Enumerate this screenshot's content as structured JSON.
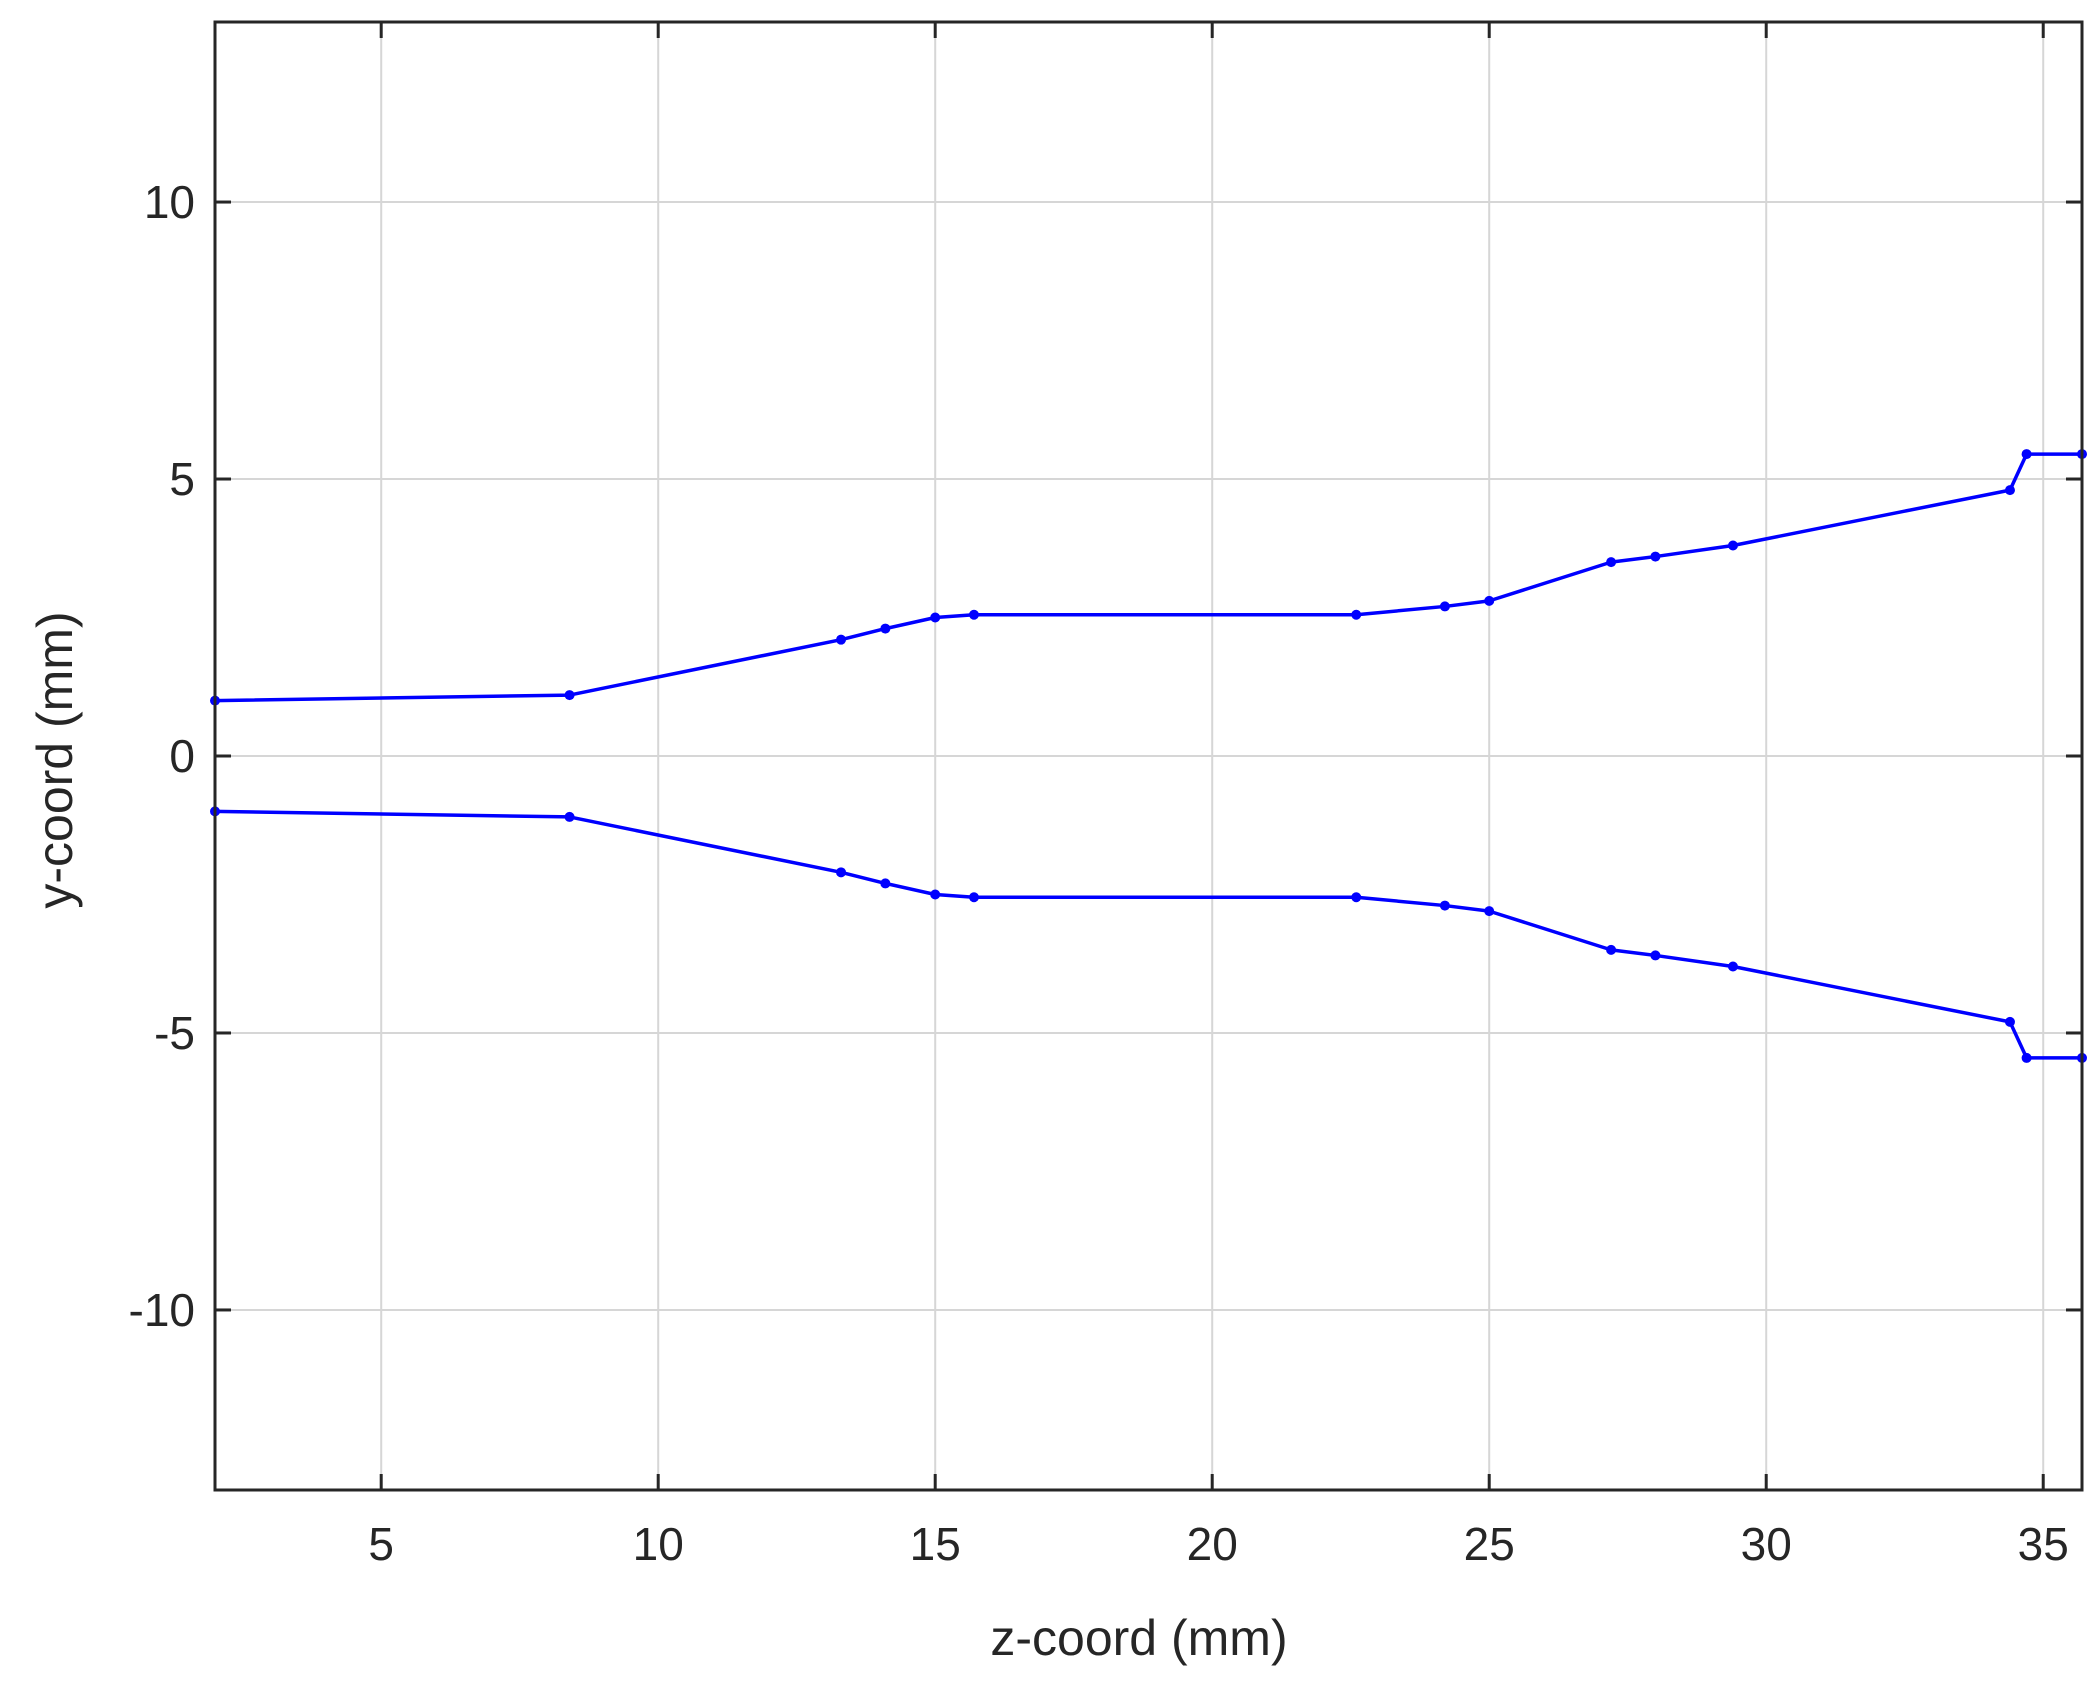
{
  "chart_data": {
    "type": "line",
    "title": "",
    "xlabel": "z-coord (mm)",
    "ylabel": "y-coord (mm)",
    "xlim": [
      2,
      35.7
    ],
    "ylim": [
      -13.25,
      13.25
    ],
    "xticks": [
      5,
      10,
      15,
      20,
      25,
      30,
      35
    ],
    "yticks": [
      -10,
      -5,
      0,
      5,
      10
    ],
    "xtick_labels": [
      "5",
      "10",
      "15",
      "20",
      "25",
      "30",
      "35"
    ],
    "ytick_labels": [
      "-10",
      "-5",
      "0",
      "5",
      "10"
    ],
    "grid": true,
    "legend": "none",
    "color": "#0000ff",
    "series": [
      {
        "x": [
          2.0,
          8.4,
          13.3,
          14.1,
          15.0,
          15.7,
          22.6,
          24.2,
          25.0,
          27.2,
          28.0,
          29.4,
          34.4,
          34.7,
          35.7
        ],
        "y": [
          1.0,
          1.1,
          2.1,
          2.3,
          2.5,
          2.55,
          2.55,
          2.7,
          2.8,
          3.5,
          3.6,
          3.8,
          4.8,
          5.45,
          5.45
        ]
      },
      {
        "x": [
          2.0,
          8.4,
          13.3,
          14.1,
          15.0,
          15.7,
          22.6,
          24.2,
          25.0,
          27.2,
          28.0,
          29.4,
          34.4,
          34.7,
          35.7
        ],
        "y": [
          -1.0,
          -1.1,
          -2.1,
          -2.3,
          -2.5,
          -2.55,
          -2.55,
          -2.7,
          -2.8,
          -3.5,
          -3.6,
          -3.8,
          -4.8,
          -5.45,
          -5.45
        ]
      }
    ]
  }
}
